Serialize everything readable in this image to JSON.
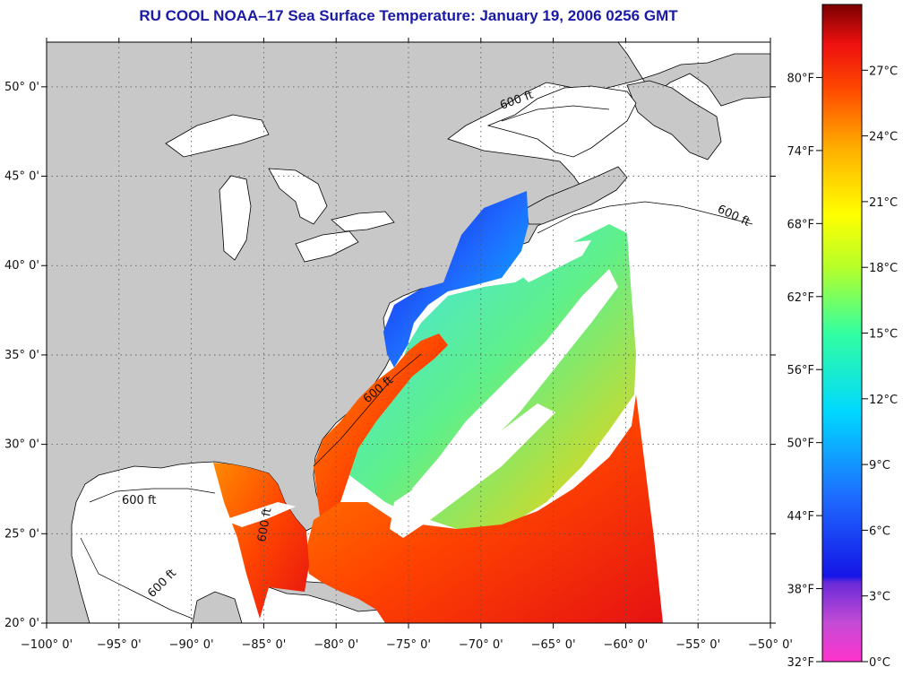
{
  "title": "RU COOL  NOAA–17  Sea Surface Temperature:  January 19, 2006 0256 GMT",
  "map": {
    "lon_range": [
      -100,
      -50
    ],
    "lat_range": [
      20,
      52.5
    ],
    "lon_ticks": [
      {
        "lon": -100,
        "label": "−100° 0'"
      },
      {
        "lon": -95,
        "label": "−95° 0'"
      },
      {
        "lon": -90,
        "label": "−90° 0'"
      },
      {
        "lon": -85,
        "label": "−85° 0'"
      },
      {
        "lon": -80,
        "label": "−80° 0'"
      },
      {
        "lon": -75,
        "label": "−75° 0'"
      },
      {
        "lon": -70,
        "label": "−70° 0'"
      },
      {
        "lon": -65,
        "label": "−65° 0'"
      },
      {
        "lon": -60,
        "label": "−60° 0'"
      },
      {
        "lon": -55,
        "label": "−55° 0'"
      },
      {
        "lon": -50,
        "label": "−50° 0'"
      }
    ],
    "lat_ticks": [
      {
        "lat": 20,
        "label": "20° 0'"
      },
      {
        "lat": 25,
        "label": "25° 0'"
      },
      {
        "lat": 30,
        "label": "30° 0'"
      },
      {
        "lat": 35,
        "label": "35° 0'"
      },
      {
        "lat": 40,
        "label": "40° 0'"
      },
      {
        "lat": 45,
        "label": "45° 0'"
      },
      {
        "lat": 50,
        "label": "50° 0'"
      }
    ],
    "isobath_labels": [
      "600 ft",
      "600 ft",
      "600 ft",
      "600 ft",
      "600 ft",
      "600 ft"
    ],
    "colors": {
      "land": "#c8c8c8",
      "ocean_nodata": "#ffffff",
      "coastline": "#000000"
    }
  },
  "colorbar": {
    "fahrenheit": [
      "80°F",
      "74°F",
      "68°F",
      "62°F",
      "56°F",
      "50°F",
      "44°F",
      "38°F",
      "32°F"
    ],
    "celsius": [
      "27°C",
      "24°C",
      "21°C",
      "18°C",
      "15°C",
      "12°C",
      "9°C",
      "6°C",
      "3°C",
      "0°C"
    ],
    "stops": [
      "#ff33cc",
      "#9933cc",
      "#1515e6",
      "#1e90ff",
      "#00e5ff",
      "#33ff99",
      "#ccff33",
      "#ffff00",
      "#ffb300",
      "#ff5500",
      "#ee1111",
      "#8b0000"
    ]
  }
}
